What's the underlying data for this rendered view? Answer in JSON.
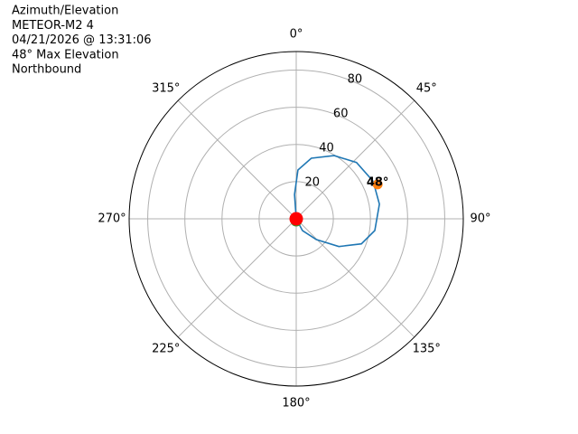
{
  "chart_data": {
    "type": "polar",
    "title_lines": [
      "Azimuth/Elevation",
      "METEOR-M2 4",
      "04/21/2026 @ 13:31:06",
      "48° Max Elevation",
      "Northbound"
    ],
    "theta_zero": "N",
    "theta_direction": "clockwise",
    "rlim": [
      0,
      90
    ],
    "rticks": [
      20,
      40,
      60,
      80
    ],
    "rlabel_angle": 22.5,
    "thetaticks": [
      {
        "value": 0,
        "label": "0°"
      },
      {
        "value": 45,
        "label": "45°"
      },
      {
        "value": 90,
        "label": "90°"
      },
      {
        "value": 135,
        "label": "135°"
      },
      {
        "value": 180,
        "label": "180°"
      },
      {
        "value": 225,
        "label": "225°"
      },
      {
        "value": 270,
        "label": "270°"
      },
      {
        "value": 315,
        "label": "315°"
      }
    ],
    "grid": true,
    "color": "#1f77b4",
    "theta": [
      0,
      356,
      2,
      14,
      31,
      47,
      64,
      80,
      98.5,
      111,
      123,
      136,
      152,
      180
    ],
    "values": [
      0,
      13.1,
      26.3,
      33.6,
      39.7,
      44.4,
      46.1,
      45.5,
      42.8,
      37.6,
      27.4,
      15.5,
      7.2,
      0
    ],
    "markers": [
      {
        "theta": 66,
        "r": 48,
        "color": "#ff7f0e",
        "label": "48°"
      },
      {
        "theta": 0,
        "r": 0,
        "color": "#2ca02c"
      },
      {
        "theta": 180,
        "r": 0,
        "color": "#ff0000"
      }
    ]
  }
}
